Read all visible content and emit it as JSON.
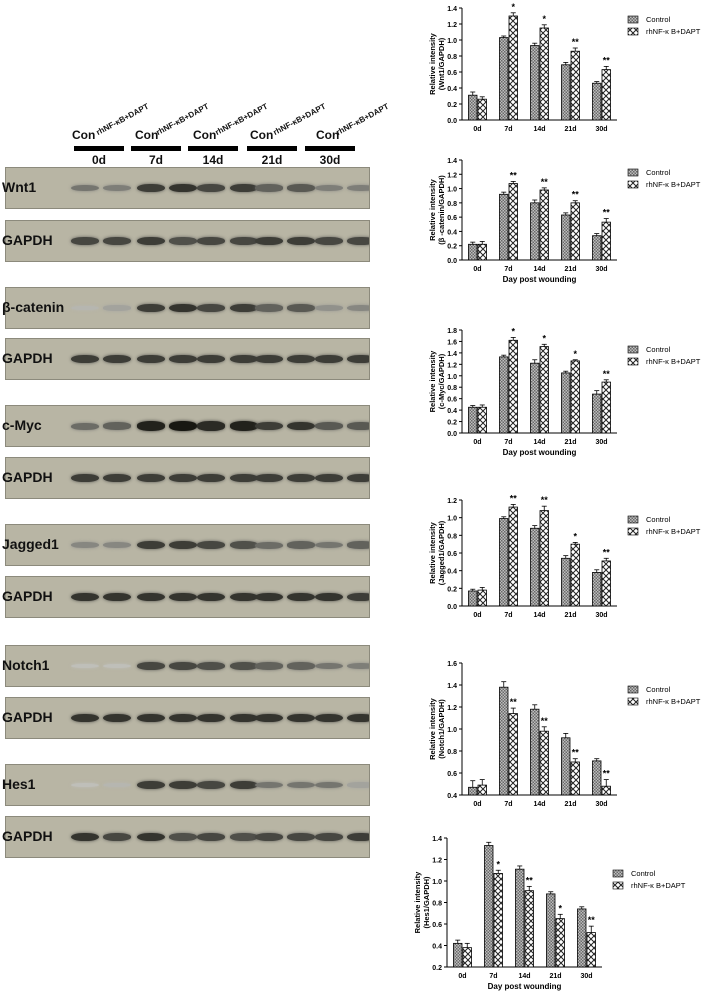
{
  "lanes": {
    "con_label": "Con",
    "treat_label": "rhNF-κB+DAPT",
    "groups": [
      "0d",
      "7d",
      "14d",
      "21d",
      "30d"
    ]
  },
  "blots": [
    {
      "label": "Wnt1",
      "intensity": [
        0.45,
        0.4,
        0.75,
        0.8,
        0.7,
        0.75,
        0.55,
        0.6,
        0.4,
        0.4
      ]
    },
    {
      "label": "GAPDH",
      "intensity": [
        0.7,
        0.7,
        0.75,
        0.65,
        0.7,
        0.7,
        0.75,
        0.75,
        0.7,
        0.7
      ]
    },
    {
      "label": "β-catenin",
      "intensity": [
        0.1,
        0.2,
        0.75,
        0.8,
        0.7,
        0.75,
        0.55,
        0.6,
        0.3,
        0.35
      ]
    },
    {
      "label": "GAPDH",
      "intensity": [
        0.75,
        0.75,
        0.75,
        0.75,
        0.75,
        0.75,
        0.75,
        0.75,
        0.75,
        0.75
      ]
    },
    {
      "label": "c-Myc",
      "intensity": [
        0.5,
        0.55,
        0.9,
        0.95,
        0.85,
        0.9,
        0.75,
        0.8,
        0.6,
        0.6
      ]
    },
    {
      "label": "GAPDH",
      "intensity": [
        0.75,
        0.75,
        0.75,
        0.75,
        0.75,
        0.75,
        0.75,
        0.75,
        0.75,
        0.75
      ]
    },
    {
      "label": "Jagged1",
      "intensity": [
        0.35,
        0.35,
        0.75,
        0.75,
        0.7,
        0.65,
        0.5,
        0.55,
        0.45,
        0.55
      ]
    },
    {
      "label": "GAPDH",
      "intensity": [
        0.8,
        0.8,
        0.8,
        0.8,
        0.8,
        0.8,
        0.8,
        0.8,
        0.8,
        0.75
      ]
    },
    {
      "label": "Notch1",
      "intensity": [
        0.05,
        0.05,
        0.7,
        0.7,
        0.65,
        0.65,
        0.55,
        0.55,
        0.45,
        0.4
      ]
    },
    {
      "label": "GAPDH",
      "intensity": [
        0.8,
        0.8,
        0.8,
        0.8,
        0.8,
        0.8,
        0.8,
        0.8,
        0.8,
        0.8
      ]
    },
    {
      "label": "Hes1",
      "intensity": [
        0.05,
        0.1,
        0.75,
        0.75,
        0.7,
        0.75,
        0.45,
        0.45,
        0.45,
        0.2
      ]
    },
    {
      "label": "GAPDH",
      "intensity": [
        0.8,
        0.7,
        0.8,
        0.65,
        0.7,
        0.65,
        0.7,
        0.7,
        0.7,
        0.75
      ]
    }
  ],
  "chart_data": [
    {
      "type": "bar",
      "categories": [
        "0d",
        "7d",
        "14d",
        "21d",
        "30d"
      ],
      "ylabel": "Relative intensity\n(Wnt1/GAPDH)",
      "xlabel": "",
      "ylim": [
        0,
        1.4
      ],
      "yticks": [
        "0.0",
        "0.2",
        "0.4",
        "0.6",
        "0.8",
        "1.0",
        "1.2",
        "1.4"
      ],
      "series": [
        {
          "name": "Control",
          "values": [
            0.31,
            1.03,
            0.93,
            0.69,
            0.46
          ],
          "err": [
            0.04,
            0.02,
            0.03,
            0.03,
            0.02
          ]
        },
        {
          "name": "rhNF-κ B+DAPT",
          "values": [
            0.26,
            1.3,
            1.15,
            0.86,
            0.63
          ],
          "err": [
            0.03,
            0.04,
            0.04,
            0.04,
            0.04
          ]
        }
      ],
      "annotations": [
        "",
        "*",
        "*",
        "**",
        "**"
      ]
    },
    {
      "type": "bar",
      "categories": [
        "0d",
        "7d",
        "14d",
        "21d",
        "30d"
      ],
      "ylabel": "Relative intensity\n(β -catenin/GAPDH)",
      "xlabel": "Day post wounding",
      "ylim": [
        0,
        1.4
      ],
      "yticks": [
        "0.0",
        "0.2",
        "0.4",
        "0.6",
        "0.8",
        "1.0",
        "1.2",
        "1.4"
      ],
      "series": [
        {
          "name": "Control",
          "values": [
            0.22,
            0.92,
            0.8,
            0.63,
            0.34
          ],
          "err": [
            0.03,
            0.03,
            0.04,
            0.03,
            0.03
          ]
        },
        {
          "name": "rhNF-κ B+DAPT",
          "values": [
            0.22,
            1.07,
            0.98,
            0.8,
            0.53
          ],
          "err": [
            0.04,
            0.03,
            0.03,
            0.03,
            0.05
          ]
        }
      ],
      "annotations": [
        "",
        "**",
        "**",
        "**",
        "**"
      ]
    },
    {
      "type": "bar",
      "categories": [
        "0d",
        "7d",
        "14d",
        "21d",
        "30d"
      ],
      "ylabel": "Relative intensity\n(c-Myc/GAPDH)",
      "xlabel": "Day post wounding",
      "ylim": [
        0,
        1.8
      ],
      "yticks": [
        "0.0",
        "0.2",
        "0.4",
        "0.6",
        "0.8",
        "1.0",
        "1.2",
        "1.4",
        "1.6",
        "1.8"
      ],
      "series": [
        {
          "name": "Control",
          "values": [
            0.45,
            1.33,
            1.22,
            1.05,
            0.68
          ],
          "err": [
            0.03,
            0.03,
            0.06,
            0.03,
            0.06
          ]
        },
        {
          "name": "rhNF-κ B+DAPT",
          "values": [
            0.45,
            1.62,
            1.51,
            1.26,
            0.89
          ],
          "err": [
            0.04,
            0.05,
            0.04,
            0.02,
            0.04
          ]
        }
      ],
      "annotations": [
        "",
        "*",
        "*",
        "*",
        "**"
      ]
    },
    {
      "type": "bar",
      "categories": [
        "0d",
        "7d",
        "14d",
        "21d",
        "30d"
      ],
      "ylabel": "Relative intensity\n(Jagged1/GAPDH)",
      "xlabel": "",
      "ylim": [
        0,
        1.2
      ],
      "yticks": [
        "0.0",
        "0.2",
        "0.4",
        "0.6",
        "0.8",
        "1.0",
        "1.2"
      ],
      "series": [
        {
          "name": "Control",
          "values": [
            0.17,
            0.99,
            0.88,
            0.54,
            0.38
          ],
          "err": [
            0.02,
            0.02,
            0.03,
            0.03,
            0.03
          ]
        },
        {
          "name": "rhNF-κ B+DAPT",
          "values": [
            0.18,
            1.12,
            1.08,
            0.7,
            0.51
          ],
          "err": [
            0.03,
            0.03,
            0.05,
            0.02,
            0.03
          ]
        }
      ],
      "annotations": [
        "",
        "**",
        "**",
        "*",
        "**"
      ]
    },
    {
      "type": "bar",
      "categories": [
        "0d",
        "7d",
        "14d",
        "21d",
        "30d"
      ],
      "ylabel": "Relative intensity\n(Notch1/GAPDH)",
      "xlabel": "",
      "ylim": [
        0.4,
        1.6
      ],
      "yticks": [
        "0.4",
        "0.6",
        "0.8",
        "1.0",
        "1.2",
        "1.4",
        "1.6"
      ],
      "series": [
        {
          "name": "Control",
          "values": [
            0.47,
            1.38,
            1.18,
            0.92,
            0.71
          ],
          "err": [
            0.06,
            0.05,
            0.04,
            0.04,
            0.02
          ]
        },
        {
          "name": "rhNF-κ B+DAPT",
          "values": [
            0.49,
            1.14,
            0.98,
            0.7,
            0.48
          ],
          "err": [
            0.05,
            0.05,
            0.04,
            0.03,
            0.06
          ]
        }
      ],
      "annotations": [
        "",
        "**",
        "**",
        "**",
        "**"
      ]
    },
    {
      "type": "bar",
      "categories": [
        "0d",
        "7d",
        "14d",
        "21d",
        "30d"
      ],
      "ylabel": "Relative intensity\n(Hes1/GAPDH)",
      "xlabel": "Day post wounding",
      "ylim": [
        0.2,
        1.4
      ],
      "yticks": [
        "0.2",
        "0.4",
        "0.6",
        "0.8",
        "1.0",
        "1.2",
        "1.4"
      ],
      "series": [
        {
          "name": "Control",
          "values": [
            0.42,
            1.33,
            1.11,
            0.88,
            0.74
          ],
          "err": [
            0.03,
            0.03,
            0.03,
            0.02,
            0.02
          ]
        },
        {
          "name": "rhNF-κ B+DAPT",
          "values": [
            0.38,
            1.07,
            0.91,
            0.65,
            0.52
          ],
          "err": [
            0.04,
            0.03,
            0.04,
            0.04,
            0.06
          ]
        }
      ],
      "annotations": [
        "",
        "*",
        "**",
        "*",
        "**"
      ]
    }
  ]
}
